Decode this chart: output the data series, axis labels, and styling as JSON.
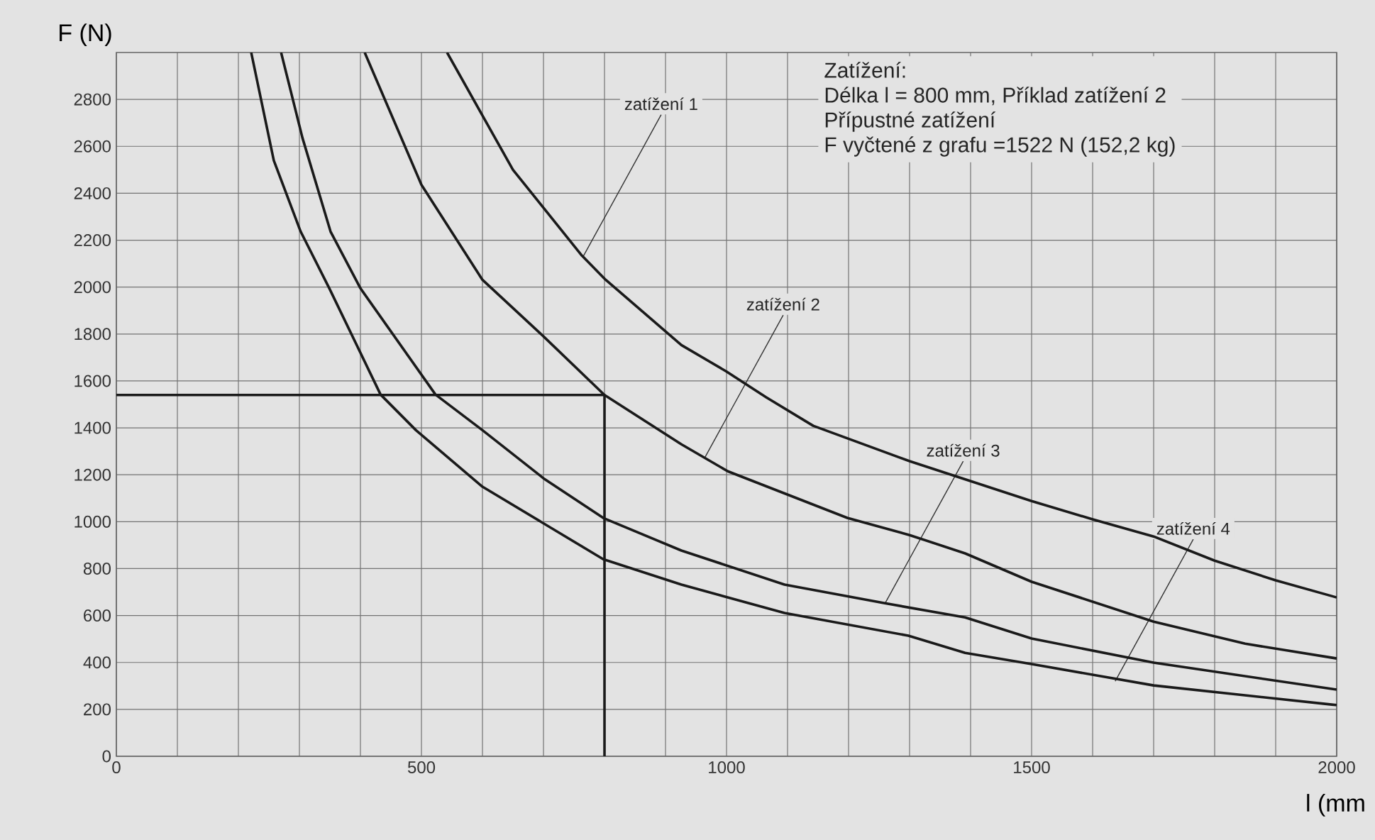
{
  "chart_data": {
    "type": "line",
    "xlabel": "l (mm",
    "ylabel": "F (N)",
    "xlim": [
      0,
      2000
    ],
    "ylim": [
      0,
      3000
    ],
    "xticks": [
      0,
      500,
      1000,
      1500,
      2000
    ],
    "yticks": [
      0,
      200,
      400,
      600,
      800,
      1000,
      1200,
      1400,
      1600,
      1800,
      2000,
      2200,
      2400,
      2600,
      2800
    ],
    "grid": true,
    "line_style": "solid",
    "series": [
      {
        "color": "#1a1a1a",
        "x": [
          542,
          650,
          763,
          802,
          926,
          1000,
          1065,
          1142,
          1300,
          1500,
          1600,
          1700,
          1800,
          1900,
          2000
        ],
        "values": [
          3000,
          2500,
          2134,
          2031,
          1753,
          1640,
          1530,
          1409,
          1258,
          1088,
          1010,
          937,
          834,
          750,
          677
        ]
      },
      {
        "color": "#1a1a1a",
        "x": [
          407,
          500,
          600,
          700,
          800,
          926,
          1002,
          1198,
          1300,
          1391,
          1500,
          1700,
          1850,
          2000
        ],
        "values": [
          3000,
          2436,
          2031,
          1790,
          1540,
          1330,
          1215,
          1016,
          943,
          865,
          744,
          574,
          480,
          417
        ]
      },
      {
        "color": "#1a1a1a",
        "x": [
          270,
          305,
          351,
          400,
          523,
          600,
          700,
          798,
          926,
          1095,
          1258,
          1391,
          1500,
          1700,
          2000
        ],
        "values": [
          3000,
          2636,
          2237,
          1995,
          1542,
          1390,
          1185,
          1016,
          877,
          732,
          653,
          592,
          502,
          399,
          284
        ]
      },
      {
        "color": "#1a1a1a",
        "x": [
          221,
          258,
          302,
          349,
          433,
          491,
          600,
          798,
          926,
          1095,
          1298,
          1391,
          1500,
          1700,
          2000
        ],
        "values": [
          3000,
          2540,
          2237,
          1995,
          1542,
          1390,
          1149,
          840,
          732,
          611,
          514,
          441,
          393,
          302,
          218
        ]
      },
      {
        "color": "#1a1a1a",
        "x": [
          800,
          800,
          0
        ],
        "values": [
          0,
          1540,
          1540
        ]
      }
    ],
    "annotations": [
      "Zatížení:",
      "Délka l = 800 mm, Příklad zatížení 2",
      "Přípustné zatížení",
      "F vyčtené z grafu =1522 N (152,2 kg)",
      {
        "text": "zatížení 1",
        "x": 765,
        "y": 2130
      },
      {
        "text": "zatížení 2",
        "x": 965,
        "y": 1276
      },
      {
        "text": "zatížení 3",
        "x": 1260,
        "y": 653
      },
      {
        "text": "zatížení 4",
        "x": 1637,
        "y": 320
      }
    ]
  }
}
